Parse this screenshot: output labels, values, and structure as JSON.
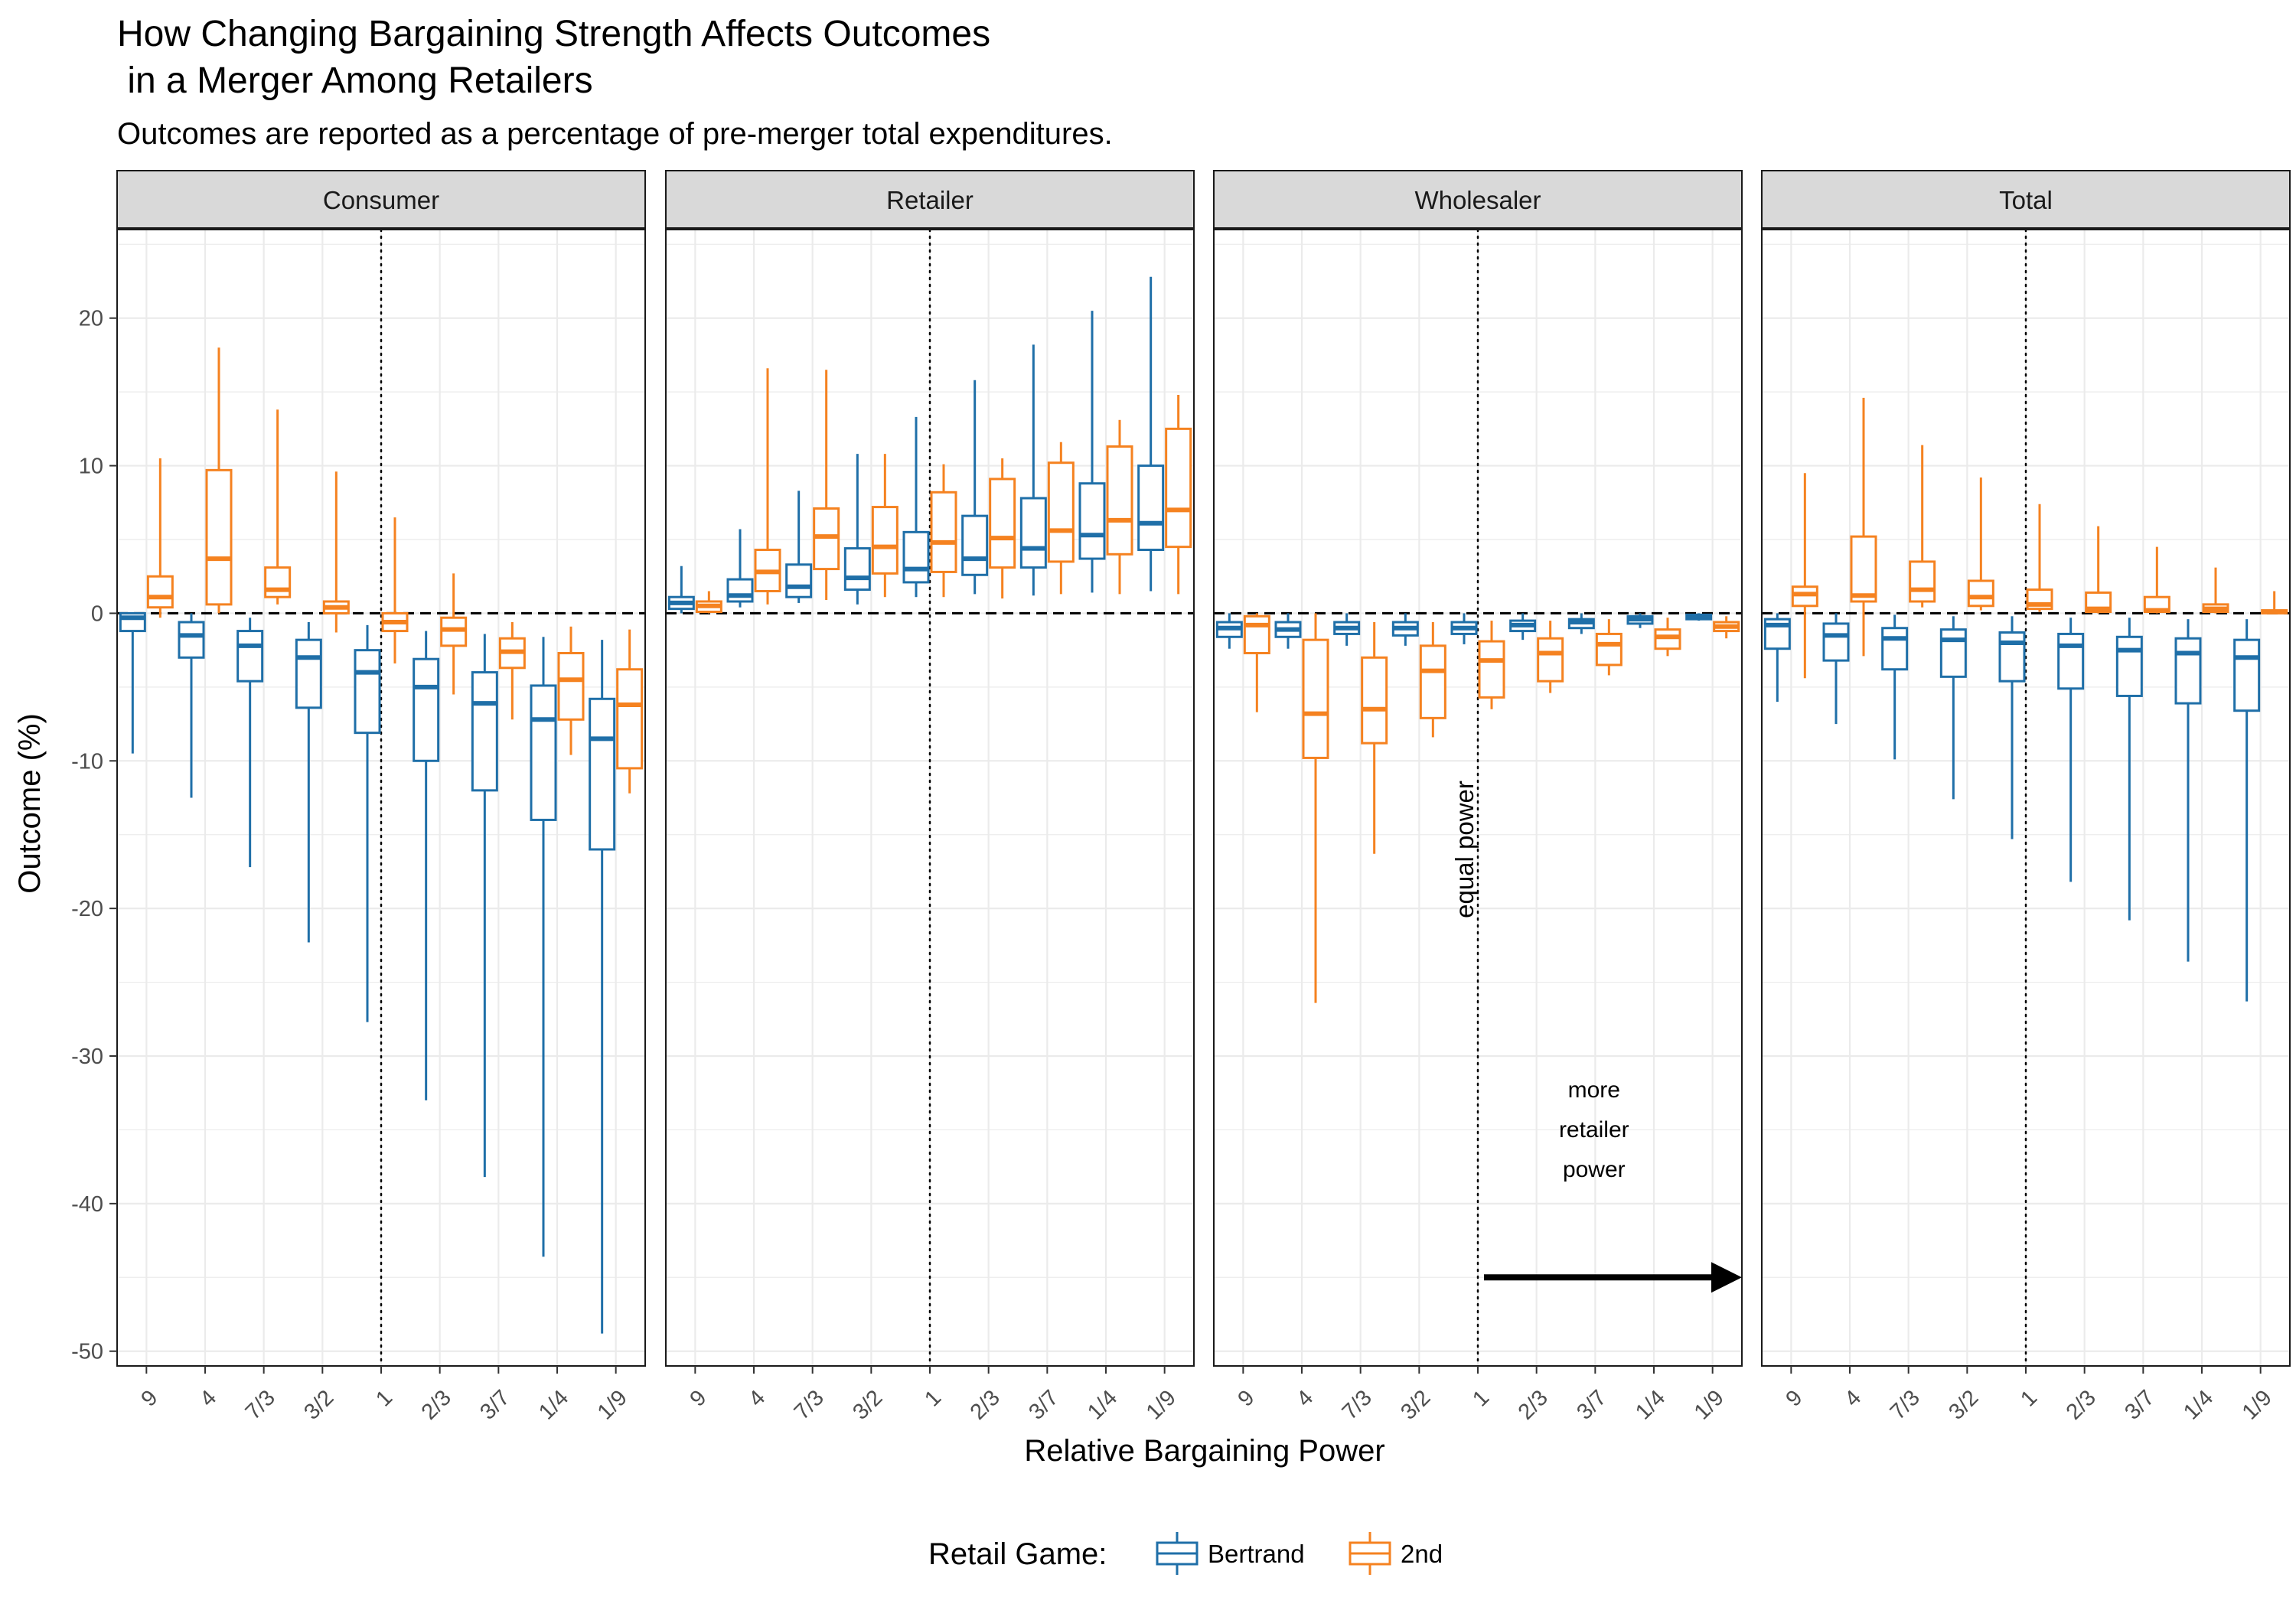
{
  "chart_data": {
    "type": "boxplot",
    "title": "How Changing Bargaining Strength Affects Outcomes\n in a Merger Among Retailers",
    "subtitle": "Outcomes are reported as a percentage of pre-merger total expenditures.",
    "xlabel": "Relative Bargaining Power",
    "ylabel": "Outcome (%)",
    "ylim": [
      -51,
      26
    ],
    "yticks": [
      20,
      10,
      0,
      -10,
      -20,
      -30,
      -40,
      -50
    ],
    "categories": [
      "9",
      "4",
      "7/3",
      "3/2",
      "1",
      "2/3",
      "3/7",
      "1/4",
      "1/9"
    ],
    "grid": true,
    "legend": {
      "title": "Retail Game:",
      "position": "bottom",
      "entries": [
        "Bertrand",
        "2nd"
      ]
    },
    "colors": {
      "Bertrand": "#1f6fa8",
      "2nd": "#f58220"
    },
    "reference_lines": {
      "horizontal_dashed": 0,
      "vertical_dotted_category": "1"
    },
    "annotations": {
      "equal_power": "equal power",
      "retailer_power": [
        "more",
        "retailer",
        "power"
      ]
    },
    "panels": [
      {
        "name": "Consumer",
        "series": [
          {
            "name": "Bertrand",
            "boxes": [
              {
                "min": -9.5,
                "q1": -1.2,
                "median": -0.3,
                "q3": 0,
                "max": 0
              },
              {
                "min": -12.5,
                "q1": -3,
                "median": -1.5,
                "q3": -0.6,
                "max": 0
              },
              {
                "min": -17.2,
                "q1": -4.6,
                "median": -2.2,
                "q3": -1.2,
                "max": -0.3
              },
              {
                "min": -22.3,
                "q1": -6.4,
                "median": -3,
                "q3": -1.8,
                "max": -0.6
              },
              {
                "min": -27.7,
                "q1": -8.1,
                "median": -4,
                "q3": -2.5,
                "max": -0.8
              },
              {
                "min": -33,
                "q1": -10,
                "median": -5,
                "q3": -3.1,
                "max": -1.2
              },
              {
                "min": -38.2,
                "q1": -12,
                "median": -6.1,
                "q3": -4,
                "max": -1.4
              },
              {
                "min": -43.6,
                "q1": -14,
                "median": -7.2,
                "q3": -4.9,
                "max": -1.6
              },
              {
                "min": -48.8,
                "q1": -16,
                "median": -8.5,
                "q3": -5.8,
                "max": -1.8
              }
            ]
          },
          {
            "name": "2nd",
            "boxes": [
              {
                "min": -0.3,
                "q1": 0.4,
                "median": 1.1,
                "q3": 2.5,
                "max": 10.5
              },
              {
                "min": 0,
                "q1": 0.6,
                "median": 3.7,
                "q3": 9.7,
                "max": 18
              },
              {
                "min": 0.6,
                "q1": 1.1,
                "median": 1.6,
                "q3": 3.1,
                "max": 13.8
              },
              {
                "min": -1.3,
                "q1": 0,
                "median": 0.4,
                "q3": 0.8,
                "max": 9.6
              },
              {
                "min": -3.4,
                "q1": -1.2,
                "median": -0.6,
                "q3": 0,
                "max": 6.5
              },
              {
                "min": -5.5,
                "q1": -2.2,
                "median": -1.1,
                "q3": -0.3,
                "max": 2.7
              },
              {
                "min": -7.2,
                "q1": -3.7,
                "median": -2.6,
                "q3": -1.7,
                "max": -0.6
              },
              {
                "min": -9.6,
                "q1": -7.2,
                "median": -4.5,
                "q3": -2.7,
                "max": -0.9
              },
              {
                "min": -12.2,
                "q1": -10.5,
                "median": -6.2,
                "q3": -3.8,
                "max": -1.1
              }
            ]
          }
        ]
      },
      {
        "name": "Retailer",
        "series": [
          {
            "name": "Bertrand",
            "boxes": [
              {
                "min": 0,
                "q1": 0.3,
                "median": 0.7,
                "q3": 1.1,
                "max": 3.2
              },
              {
                "min": 0.4,
                "q1": 0.8,
                "median": 1.2,
                "q3": 2.3,
                "max": 5.7
              },
              {
                "min": 0.7,
                "q1": 1.1,
                "median": 1.8,
                "q3": 3.3,
                "max": 8.3
              },
              {
                "min": 0.6,
                "q1": 1.6,
                "median": 2.4,
                "q3": 4.4,
                "max": 10.8
              },
              {
                "min": 1.1,
                "q1": 2.1,
                "median": 3,
                "q3": 5.5,
                "max": 13.3
              },
              {
                "min": 1.3,
                "q1": 2.6,
                "median": 3.7,
                "q3": 6.6,
                "max": 15.8
              },
              {
                "min": 1.2,
                "q1": 3.1,
                "median": 4.4,
                "q3": 7.8,
                "max": 18.2
              },
              {
                "min": 1.4,
                "q1": 3.7,
                "median": 5.3,
                "q3": 8.8,
                "max": 20.5
              },
              {
                "min": 1.5,
                "q1": 4.3,
                "median": 6.1,
                "q3": 10,
                "max": 22.8
              }
            ]
          },
          {
            "name": "2nd",
            "boxes": [
              {
                "min": 0,
                "q1": 0.1,
                "median": 0.5,
                "q3": 0.8,
                "max": 1.5
              },
              {
                "min": 0.6,
                "q1": 1.5,
                "median": 2.8,
                "q3": 4.3,
                "max": 16.6
              },
              {
                "min": 0.9,
                "q1": 3,
                "median": 5.2,
                "q3": 7.1,
                "max": 16.5
              },
              {
                "min": 1.1,
                "q1": 2.7,
                "median": 4.5,
                "q3": 7.2,
                "max": 10.8
              },
              {
                "min": 1.1,
                "q1": 2.8,
                "median": 4.8,
                "q3": 8.2,
                "max": 10.1
              },
              {
                "min": 1,
                "q1": 3.1,
                "median": 5.1,
                "q3": 9.1,
                "max": 10.5
              },
              {
                "min": 1.3,
                "q1": 3.5,
                "median": 5.6,
                "q3": 10.2,
                "max": 11.6
              },
              {
                "min": 1.3,
                "q1": 4,
                "median": 6.3,
                "q3": 11.3,
                "max": 13.1
              },
              {
                "min": 1.3,
                "q1": 4.5,
                "median": 7,
                "q3": 12.5,
                "max": 14.8
              }
            ]
          }
        ]
      },
      {
        "name": "Wholesaler",
        "series": [
          {
            "name": "Bertrand",
            "boxes": [
              {
                "min": -2.4,
                "q1": -1.6,
                "median": -1,
                "q3": -0.6,
                "max": 0
              },
              {
                "min": -2.4,
                "q1": -1.6,
                "median": -1.1,
                "q3": -0.6,
                "max": 0
              },
              {
                "min": -2.2,
                "q1": -1.4,
                "median": -1,
                "q3": -0.6,
                "max": 0
              },
              {
                "min": -2.2,
                "q1": -1.5,
                "median": -1,
                "q3": -0.6,
                "max": 0
              },
              {
                "min": -2.1,
                "q1": -1.4,
                "median": -1,
                "q3": -0.6,
                "max": 0
              },
              {
                "min": -1.8,
                "q1": -1.2,
                "median": -0.8,
                "q3": -0.5,
                "max": 0
              },
              {
                "min": -1.4,
                "q1": -1,
                "median": -0.6,
                "q3": -0.4,
                "max": 0
              },
              {
                "min": -1,
                "q1": -0.7,
                "median": -0.4,
                "q3": -0.2,
                "max": 0
              },
              {
                "min": -0.5,
                "q1": -0.4,
                "median": -0.2,
                "q3": -0.1,
                "max": 0
              }
            ]
          },
          {
            "name": "2nd",
            "boxes": [
              {
                "min": -6.7,
                "q1": -2.7,
                "median": -0.8,
                "q3": -0.2,
                "max": 0
              },
              {
                "min": -26.4,
                "q1": -9.8,
                "median": -6.8,
                "q3": -1.8,
                "max": 0
              },
              {
                "min": -16.3,
                "q1": -8.8,
                "median": -6.5,
                "q3": -3,
                "max": -0.6
              },
              {
                "min": -8.4,
                "q1": -7.1,
                "median": -3.9,
                "q3": -2.2,
                "max": -0.6
              },
              {
                "min": -6.5,
                "q1": -5.7,
                "median": -3.2,
                "q3": -1.9,
                "max": -0.5
              },
              {
                "min": -5.4,
                "q1": -4.6,
                "median": -2.7,
                "q3": -1.7,
                "max": -0.5
              },
              {
                "min": -4.2,
                "q1": -3.5,
                "median": -2.1,
                "q3": -1.4,
                "max": -0.4
              },
              {
                "min": -2.9,
                "q1": -2.4,
                "median": -1.6,
                "q3": -1.1,
                "max": -0.3
              },
              {
                "min": -1.7,
                "q1": -1.2,
                "median": -0.9,
                "q3": -0.6,
                "max": -0.2
              }
            ]
          }
        ]
      },
      {
        "name": "Total",
        "series": [
          {
            "name": "Bertrand",
            "boxes": [
              {
                "min": -6,
                "q1": -2.4,
                "median": -0.8,
                "q3": -0.4,
                "max": 0
              },
              {
                "min": -7.5,
                "q1": -3.2,
                "median": -1.5,
                "q3": -0.7,
                "max": 0
              },
              {
                "min": -9.9,
                "q1": -3.8,
                "median": -1.7,
                "q3": -1,
                "max": -0.1
              },
              {
                "min": -12.6,
                "q1": -4.3,
                "median": -1.8,
                "q3": -1.1,
                "max": -0.2
              },
              {
                "min": -15.3,
                "q1": -4.6,
                "median": -2,
                "q3": -1.3,
                "max": -0.2
              },
              {
                "min": -18.2,
                "q1": -5.1,
                "median": -2.2,
                "q3": -1.4,
                "max": -0.3
              },
              {
                "min": -20.8,
                "q1": -5.6,
                "median": -2.5,
                "q3": -1.6,
                "max": -0.3
              },
              {
                "min": -23.6,
                "q1": -6.1,
                "median": -2.7,
                "q3": -1.7,
                "max": -0.4
              },
              {
                "min": -26.3,
                "q1": -6.6,
                "median": -3,
                "q3": -1.8,
                "max": -0.4
              }
            ]
          },
          {
            "name": "2nd",
            "boxes": [
              {
                "min": -4.4,
                "q1": 0.5,
                "median": 1.3,
                "q3": 1.8,
                "max": 9.5
              },
              {
                "min": -2.9,
                "q1": 0.8,
                "median": 1.2,
                "q3": 5.2,
                "max": 14.6
              },
              {
                "min": 0.4,
                "q1": 0.8,
                "median": 1.6,
                "q3": 3.5,
                "max": 11.4
              },
              {
                "min": 0.2,
                "q1": 0.5,
                "median": 1.1,
                "q3": 2.2,
                "max": 9.2
              },
              {
                "min": 0.1,
                "q1": 0.3,
                "median": 0.6,
                "q3": 1.6,
                "max": 7.4
              },
              {
                "min": 0,
                "q1": 0.1,
                "median": 0.3,
                "q3": 1.4,
                "max": 5.9
              },
              {
                "min": 0,
                "q1": 0.1,
                "median": 0.2,
                "q3": 1.1,
                "max": 4.5
              },
              {
                "min": 0,
                "q1": 0.1,
                "median": 0.3,
                "q3": 0.6,
                "max": 3.1
              },
              {
                "min": 0,
                "q1": 0,
                "median": 0.1,
                "q3": 0.2,
                "max": 1.5
              }
            ]
          }
        ]
      }
    ]
  }
}
